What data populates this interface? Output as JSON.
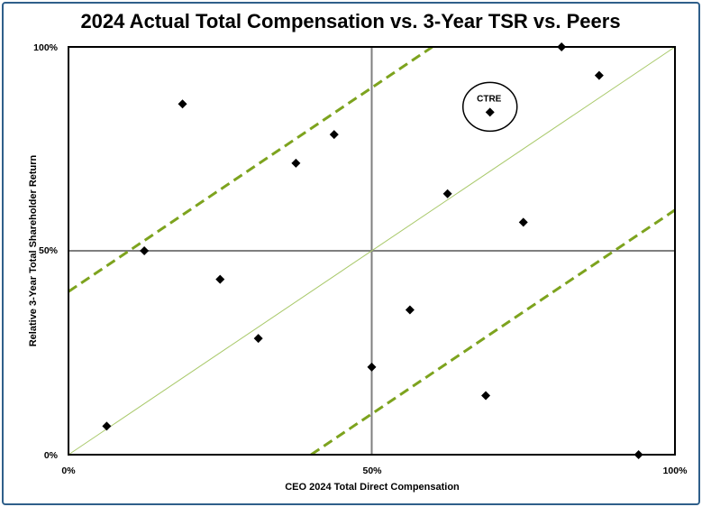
{
  "chart_data": {
    "type": "scatter",
    "title": "2024 Actual Total Compensation vs. 3-Year TSR vs. Peers",
    "xlabel": "CEO 2024 Total Direct Compensation",
    "ylabel": "Relative 3-Year Total Shareholder Return",
    "xlim": [
      0,
      100
    ],
    "ylim": [
      0,
      100
    ],
    "x_ticks": [
      "0%",
      "50%",
      "100%"
    ],
    "y_ticks": [
      "0%",
      "50%",
      "100%"
    ],
    "grid": false,
    "points": [
      {
        "x": 6.3,
        "y": 7
      },
      {
        "x": 12.5,
        "y": 50
      },
      {
        "x": 18.8,
        "y": 86
      },
      {
        "x": 25,
        "y": 43
      },
      {
        "x": 31.3,
        "y": 28.5
      },
      {
        "x": 37.5,
        "y": 71.5
      },
      {
        "x": 43.8,
        "y": 78.5
      },
      {
        "x": 50,
        "y": 21.5
      },
      {
        "x": 56.3,
        "y": 35.5
      },
      {
        "x": 62.5,
        "y": 64
      },
      {
        "x": 68.8,
        "y": 14.5
      },
      {
        "x": 69.5,
        "y": 84,
        "label": "CTRE",
        "highlight": true
      },
      {
        "x": 75,
        "y": 57
      },
      {
        "x": 81.3,
        "y": 100
      },
      {
        "x": 87.5,
        "y": 93
      },
      {
        "x": 94,
        "y": 0
      }
    ],
    "reference_lines": {
      "diagonal": {
        "from": [
          0,
          0
        ],
        "to": [
          100,
          100
        ]
      },
      "upper_band": {
        "from": [
          0,
          40
        ],
        "to": [
          60,
          100
        ]
      },
      "lower_band": {
        "from": [
          40,
          0
        ],
        "to": [
          100,
          60
        ]
      },
      "midlines": [
        50,
        50
      ]
    },
    "colors": {
      "points": "#000000",
      "diagonal": "#a9c96a",
      "band": "#7da31e",
      "midline": "#7f7f7f",
      "frame": "#2f5f8a"
    }
  }
}
